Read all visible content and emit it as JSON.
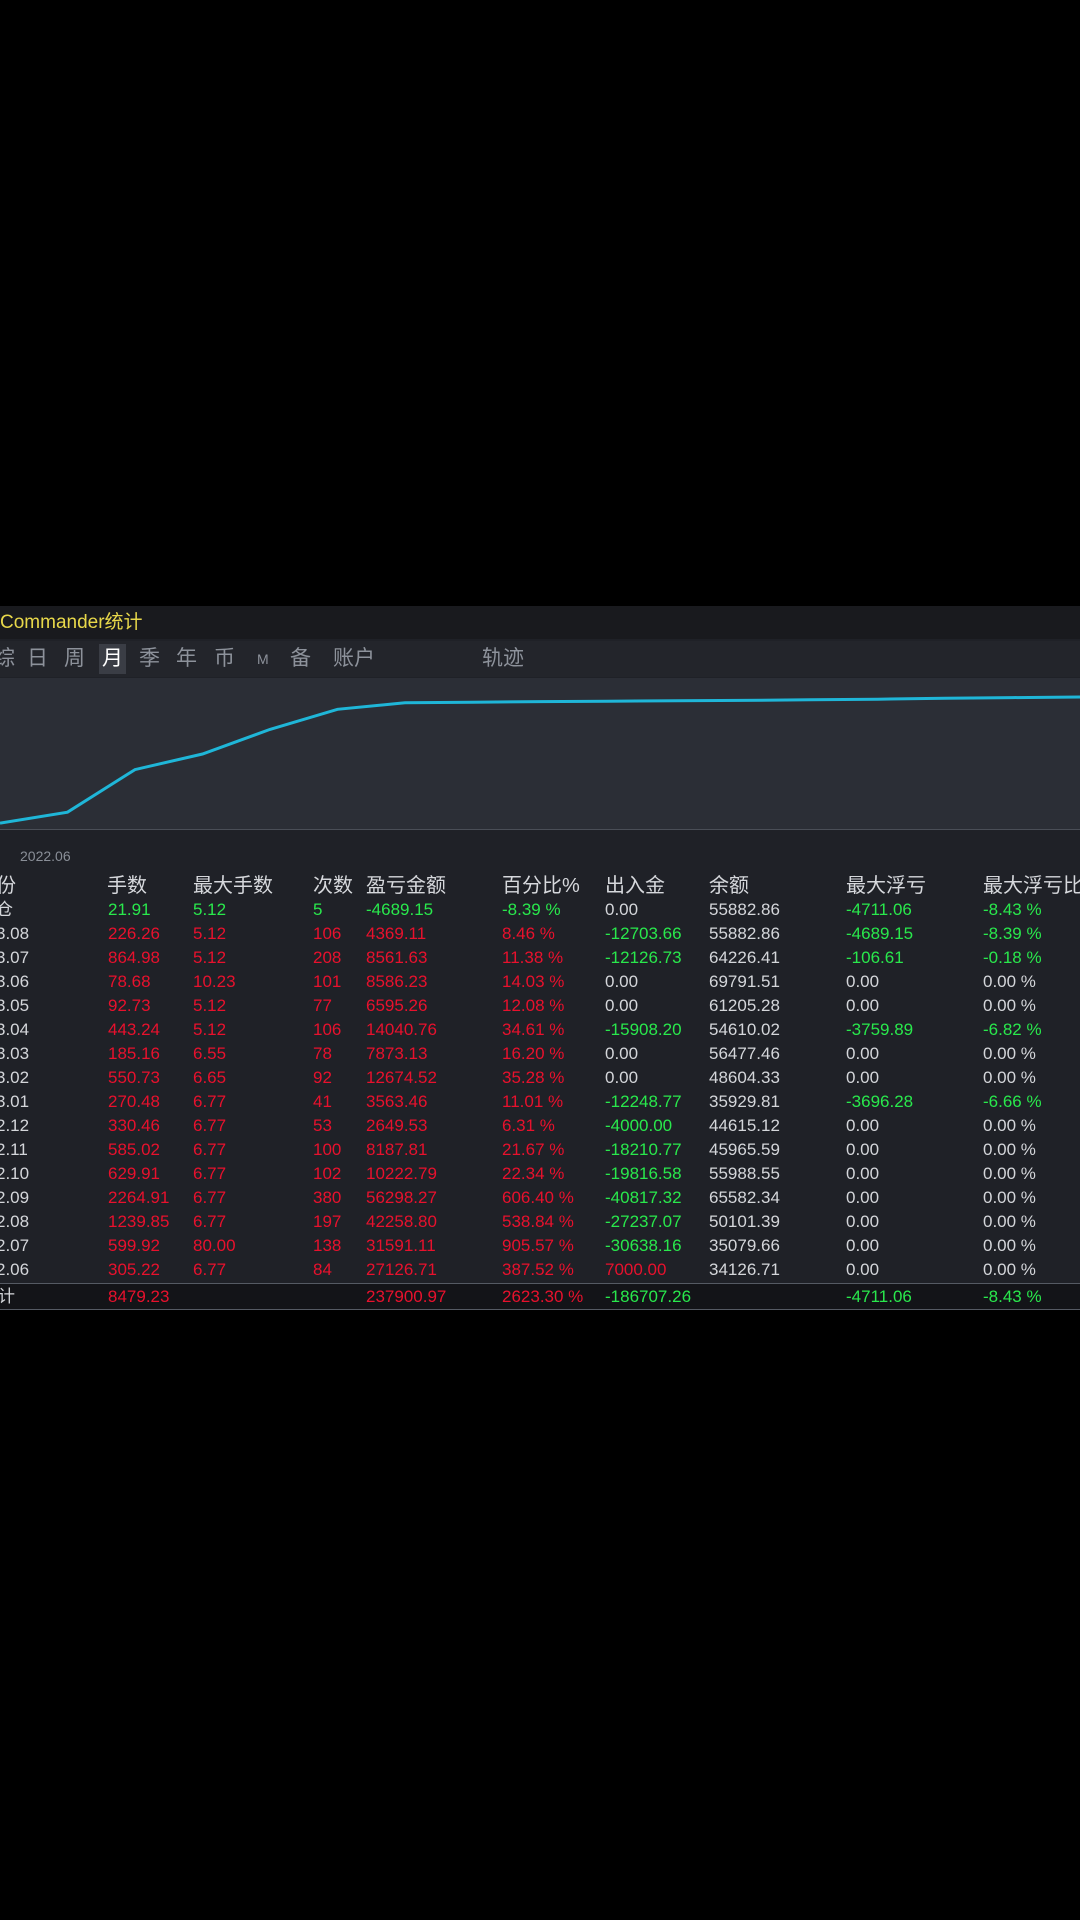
{
  "title": "Commander统计",
  "tabs": [
    {
      "label": "综",
      "active": false
    },
    {
      "label": "日",
      "active": false
    },
    {
      "label": "周",
      "active": false
    },
    {
      "label": "月",
      "active": true
    },
    {
      "label": "季",
      "active": false
    },
    {
      "label": "年",
      "active": false
    },
    {
      "label": "币",
      "active": false
    },
    {
      "label": "M",
      "active": false
    },
    {
      "label": "备",
      "active": false
    },
    {
      "label": "账户",
      "active": false
    },
    {
      "label": "轨迹",
      "active": false
    }
  ],
  "chart_data": {
    "type": "line",
    "x_label_shown": "2022.06",
    "series": [
      {
        "values": [
          2400,
          7800,
          28800,
          36500,
          48600,
          58500,
          61700,
          62000,
          62300,
          62500,
          62700,
          62900,
          63200,
          63500,
          64000,
          64300,
          64600
        ]
      }
    ],
    "ylim": [
      0,
      70000
    ],
    "color": "#1fb6d8",
    "grid": false
  },
  "table": {
    "headers": [
      "份",
      "手数",
      "最大手数",
      "次数",
      "盈亏金额",
      "百分比%",
      "出入金",
      "余额",
      "最大浮亏",
      "最大浮亏比"
    ],
    "rows": [
      {
        "period": "仓",
        "lots": "21.91",
        "max_lots": "5.12",
        "count": "5",
        "pnl": "-4689.15",
        "pct": "-8.39 %",
        "flow": "0.00",
        "balance": "55882.86",
        "max_float": "-4711.06",
        "max_float_pct": "-8.43 %",
        "c_lots": "green",
        "c_flow": "white",
        "c_float": "green",
        "c_float_pct": "green"
      },
      {
        "period": "3.08",
        "lots": "226.26",
        "max_lots": "5.12",
        "count": "106",
        "pnl": "4369.11",
        "pct": "8.46 %",
        "flow": "-12703.66",
        "balance": "55882.86",
        "max_float": "-4689.15",
        "max_float_pct": "-8.39 %",
        "c_lots": "red",
        "c_flow": "green",
        "c_float": "green",
        "c_float_pct": "green"
      },
      {
        "period": "3.07",
        "lots": "864.98",
        "max_lots": "5.12",
        "count": "208",
        "pnl": "8561.63",
        "pct": "11.38 %",
        "flow": "-12126.73",
        "balance": "64226.41",
        "max_float": "-106.61",
        "max_float_pct": "-0.18 %",
        "c_lots": "red",
        "c_flow": "green",
        "c_float": "green",
        "c_float_pct": "green"
      },
      {
        "period": "3.06",
        "lots": "78.68",
        "max_lots": "10.23",
        "count": "101",
        "pnl": "8586.23",
        "pct": "14.03 %",
        "flow": "0.00",
        "balance": "69791.51",
        "max_float": "0.00",
        "max_float_pct": "0.00 %",
        "c_lots": "red",
        "c_flow": "white",
        "c_float": "white",
        "c_float_pct": "white"
      },
      {
        "period": "3.05",
        "lots": "92.73",
        "max_lots": "5.12",
        "count": "77",
        "pnl": "6595.26",
        "pct": "12.08 %",
        "flow": "0.00",
        "balance": "61205.28",
        "max_float": "0.00",
        "max_float_pct": "0.00 %",
        "c_lots": "red",
        "c_flow": "white",
        "c_float": "white",
        "c_float_pct": "white"
      },
      {
        "period": "3.04",
        "lots": "443.24",
        "max_lots": "5.12",
        "count": "106",
        "pnl": "14040.76",
        "pct": "34.61 %",
        "flow": "-15908.20",
        "balance": "54610.02",
        "max_float": "-3759.89",
        "max_float_pct": "-6.82 %",
        "c_lots": "red",
        "c_flow": "green",
        "c_float": "green",
        "c_float_pct": "green"
      },
      {
        "period": "3.03",
        "lots": "185.16",
        "max_lots": "6.55",
        "count": "78",
        "pnl": "7873.13",
        "pct": "16.20 %",
        "flow": "0.00",
        "balance": "56477.46",
        "max_float": "0.00",
        "max_float_pct": "0.00 %",
        "c_lots": "red",
        "c_flow": "white",
        "c_float": "white",
        "c_float_pct": "white"
      },
      {
        "period": "3.02",
        "lots": "550.73",
        "max_lots": "6.65",
        "count": "92",
        "pnl": "12674.52",
        "pct": "35.28 %",
        "flow": "0.00",
        "balance": "48604.33",
        "max_float": "0.00",
        "max_float_pct": "0.00 %",
        "c_lots": "red",
        "c_flow": "white",
        "c_float": "white",
        "c_float_pct": "white"
      },
      {
        "period": "3.01",
        "lots": "270.48",
        "max_lots": "6.77",
        "count": "41",
        "pnl": "3563.46",
        "pct": "11.01 %",
        "flow": "-12248.77",
        "balance": "35929.81",
        "max_float": "-3696.28",
        "max_float_pct": "-6.66 %",
        "c_lots": "red",
        "c_flow": "green",
        "c_float": "green",
        "c_float_pct": "green"
      },
      {
        "period": "2.12",
        "lots": "330.46",
        "max_lots": "6.77",
        "count": "53",
        "pnl": "2649.53",
        "pct": "6.31 %",
        "flow": "-4000.00",
        "balance": "44615.12",
        "max_float": "0.00",
        "max_float_pct": "0.00 %",
        "c_lots": "red",
        "c_flow": "green",
        "c_float": "white",
        "c_float_pct": "white"
      },
      {
        "period": "2.11",
        "lots": "585.02",
        "max_lots": "6.77",
        "count": "100",
        "pnl": "8187.81",
        "pct": "21.67 %",
        "flow": "-18210.77",
        "balance": "45965.59",
        "max_float": "0.00",
        "max_float_pct": "0.00 %",
        "c_lots": "red",
        "c_flow": "green",
        "c_float": "white",
        "c_float_pct": "white"
      },
      {
        "period": "2.10",
        "lots": "629.91",
        "max_lots": "6.77",
        "count": "102",
        "pnl": "10222.79",
        "pct": "22.34 %",
        "flow": "-19816.58",
        "balance": "55988.55",
        "max_float": "0.00",
        "max_float_pct": "0.00 %",
        "c_lots": "red",
        "c_flow": "green",
        "c_float": "white",
        "c_float_pct": "white"
      },
      {
        "period": "2.09",
        "lots": "2264.91",
        "max_lots": "6.77",
        "count": "380",
        "pnl": "56298.27",
        "pct": "606.40 %",
        "flow": "-40817.32",
        "balance": "65582.34",
        "max_float": "0.00",
        "max_float_pct": "0.00 %",
        "c_lots": "red",
        "c_flow": "green",
        "c_float": "white",
        "c_float_pct": "white"
      },
      {
        "period": "2.08",
        "lots": "1239.85",
        "max_lots": "6.77",
        "count": "197",
        "pnl": "42258.80",
        "pct": "538.84 %",
        "flow": "-27237.07",
        "balance": "50101.39",
        "max_float": "0.00",
        "max_float_pct": "0.00 %",
        "c_lots": "red",
        "c_flow": "green",
        "c_float": "white",
        "c_float_pct": "white"
      },
      {
        "period": "2.07",
        "lots": "599.92",
        "max_lots": "80.00",
        "count": "138",
        "pnl": "31591.11",
        "pct": "905.57 %",
        "flow": "-30638.16",
        "balance": "35079.66",
        "max_float": "0.00",
        "max_float_pct": "0.00 %",
        "c_lots": "red",
        "c_flow": "green",
        "c_float": "white",
        "c_float_pct": "white"
      },
      {
        "period": "2.06",
        "lots": "305.22",
        "max_lots": "6.77",
        "count": "84",
        "pnl": "27126.71",
        "pct": "387.52 %",
        "flow": "7000.00",
        "balance": "34126.71",
        "max_float": "0.00",
        "max_float_pct": "0.00 %",
        "c_lots": "red",
        "c_flow": "red",
        "c_float": "white",
        "c_float_pct": "white"
      }
    ],
    "total": {
      "period": "计",
      "lots": "8479.23",
      "pnl": "237900.97",
      "pct": "2623.30 %",
      "flow": "-186707.26",
      "max_float": "-4711.06",
      "max_float_pct": "-8.43 %"
    }
  }
}
